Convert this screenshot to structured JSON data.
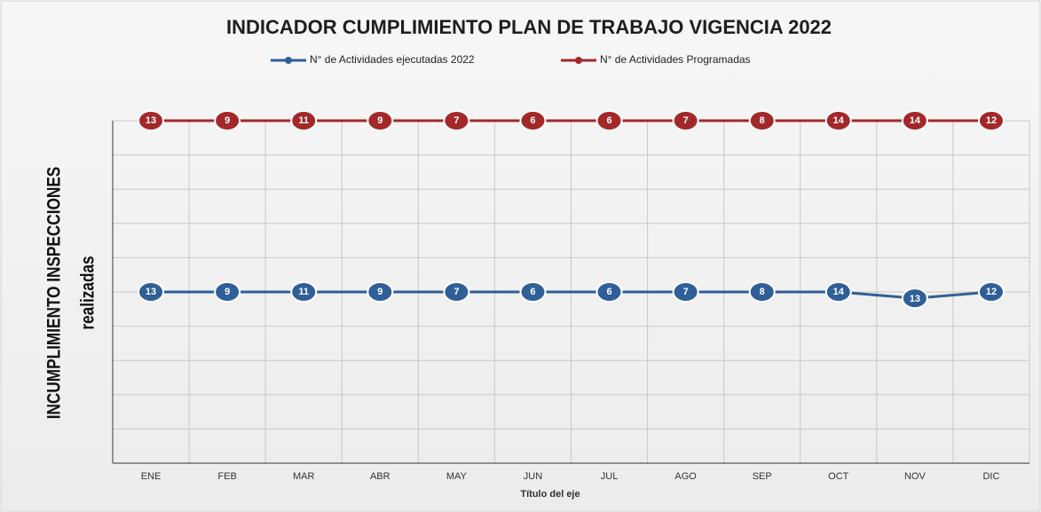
{
  "chart_data": {
    "type": "line",
    "stacking": "percent",
    "title": "INDICADOR CUMPLIMIENTO PLAN DE TRABAJO VIGENCIA 2022",
    "x_label": "Título del eje",
    "y_label": [
      "INCUMPLIMIENTO INSPECCIONES",
      "realizadas"
    ],
    "categories": [
      "ENE",
      "FEB",
      "MAR",
      "ABR",
      "MAY",
      "JUN",
      "JUL",
      "AGO",
      "SEP",
      "OCT",
      "NOV",
      "DIC"
    ],
    "series": [
      {
        "name": "N° de Actividades ejecutadas 2022",
        "color": "#2f5f98",
        "values": [
          13,
          9,
          11,
          9,
          7,
          6,
          6,
          7,
          8,
          14,
          13,
          12
        ]
      },
      {
        "name": "N° de Actividades Programadas",
        "color": "#a3282a",
        "values": [
          13,
          9,
          11,
          9,
          7,
          6,
          6,
          7,
          8,
          14,
          14,
          12
        ]
      }
    ],
    "ylim": [
      0,
      1
    ],
    "yticks": [
      0,
      0.1,
      0.2,
      0.3,
      0.4,
      0.5,
      0.6,
      0.7,
      0.8,
      0.9,
      1
    ],
    "grid": true,
    "legend": "top"
  }
}
